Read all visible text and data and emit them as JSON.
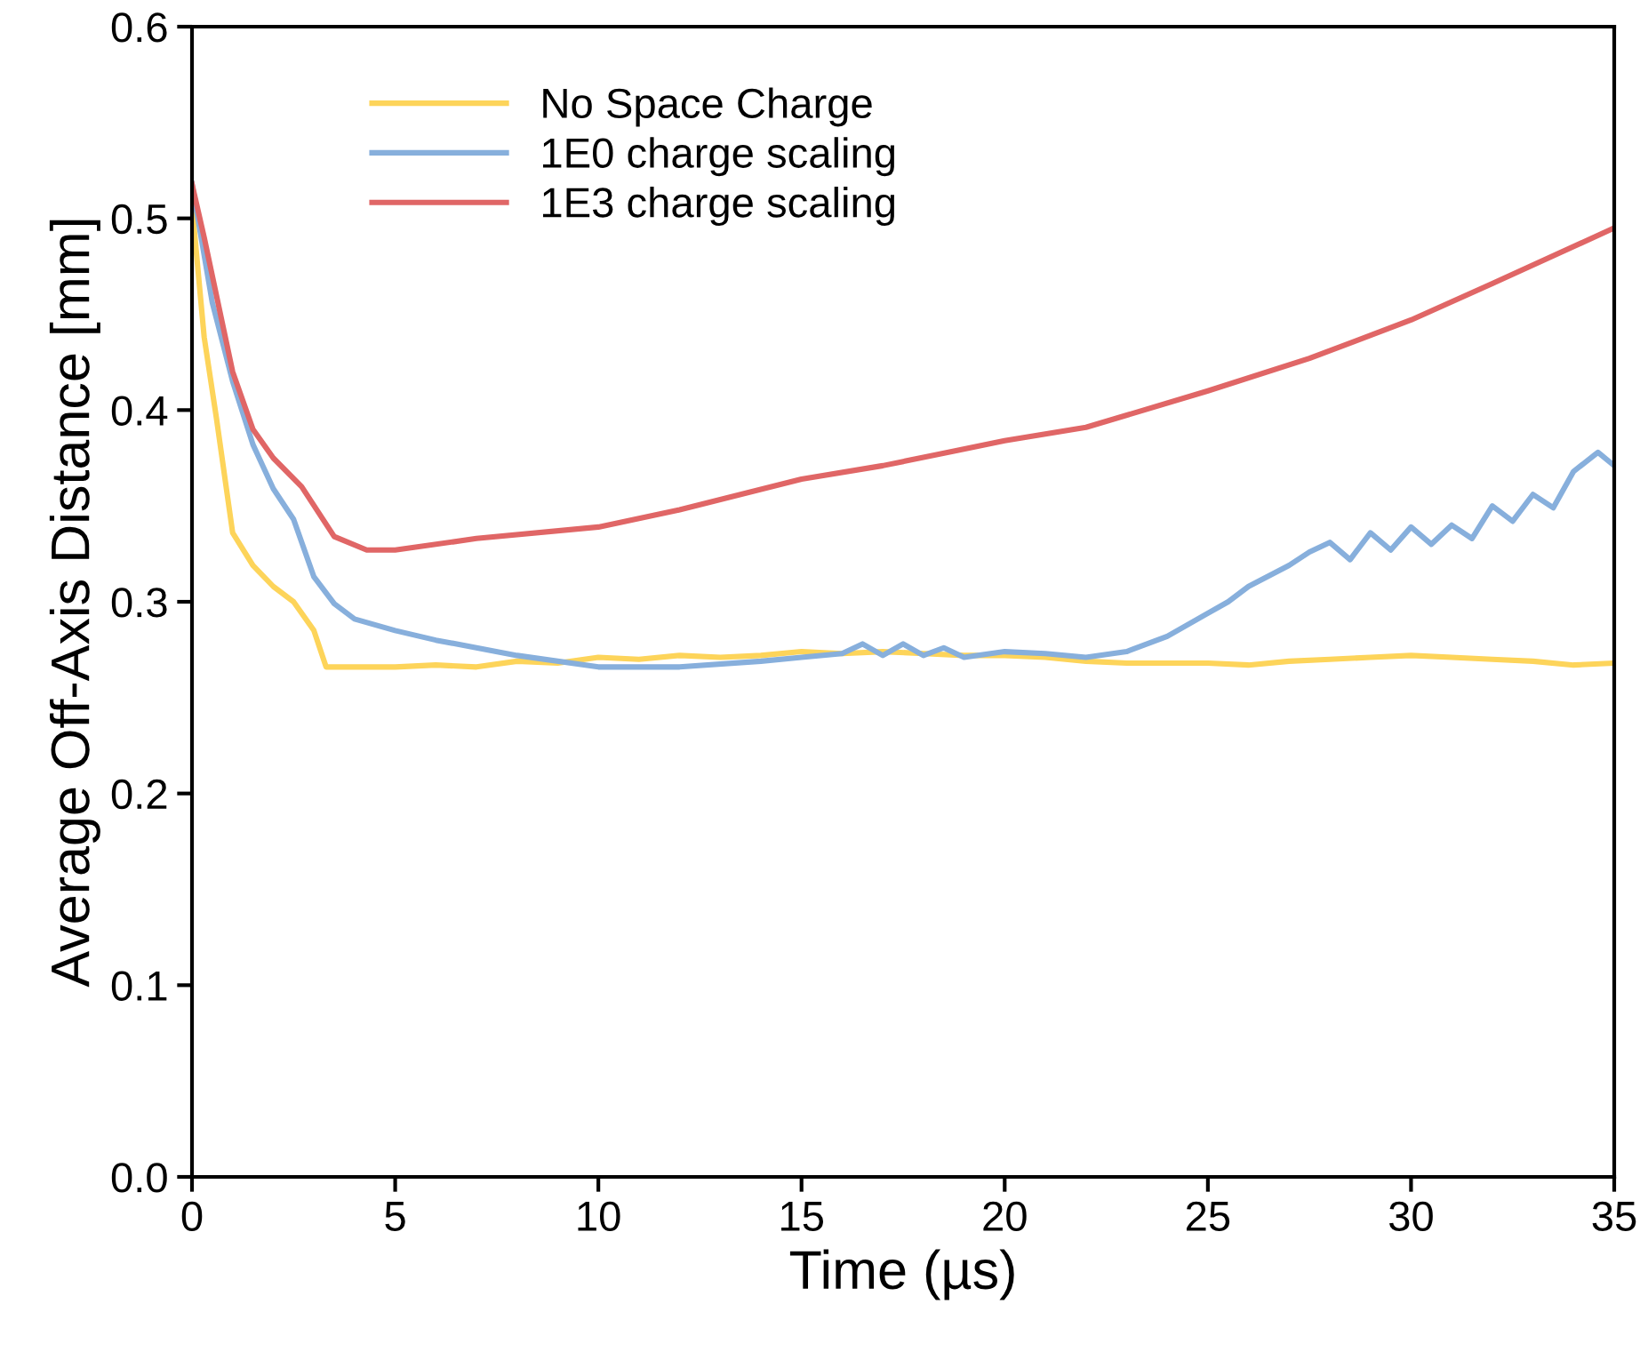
{
  "chart_data": {
    "type": "line",
    "xlabel": "Time (µs)",
    "ylabel": "Average Off-Axis Distance [mm]",
    "xlim": [
      0,
      35
    ],
    "ylim": [
      0,
      0.6
    ],
    "xticks": [
      0,
      5,
      10,
      15,
      20,
      25,
      30,
      35
    ],
    "yticks": [
      {
        "value": 0,
        "label": "0.0"
      },
      0.1,
      0.2,
      0.3,
      0.4,
      0.5,
      0.6
    ],
    "grid": false,
    "legend": "top left",
    "marker": "none",
    "line_style": "solid",
    "series": [
      {
        "name": "No Space Charge",
        "color": "#fdd45a",
        "x": [
          0,
          0.3,
          0.6,
          1,
          1.5,
          2,
          2.5,
          3,
          3.3,
          4,
          5,
          6,
          7,
          8,
          9,
          10,
          11,
          12,
          13,
          14,
          15,
          16,
          17,
          18,
          19,
          20,
          21,
          22,
          23,
          24,
          25,
          26,
          27,
          28,
          29,
          30,
          31,
          32,
          33,
          34,
          35
        ],
        "values": [
          0.507,
          0.438,
          0.396,
          0.336,
          0.319,
          0.308,
          0.3,
          0.285,
          0.266,
          0.266,
          0.266,
          0.267,
          0.266,
          0.269,
          0.268,
          0.271,
          0.27,
          0.272,
          0.271,
          0.272,
          0.274,
          0.273,
          0.274,
          0.273,
          0.272,
          0.272,
          0.271,
          0.269,
          0.268,
          0.268,
          0.268,
          0.267,
          0.269,
          0.27,
          0.271,
          0.272,
          0.271,
          0.27,
          0.269,
          0.267,
          0.268
        ]
      },
      {
        "name": "1E0 charge scaling",
        "color": "#87afdc",
        "x": [
          0,
          0.5,
          1,
          1.5,
          2,
          2.5,
          3,
          3.5,
          4,
          5,
          6,
          7,
          8,
          10,
          12,
          14,
          15,
          16,
          16.5,
          17,
          17.5,
          18,
          18.5,
          19,
          20,
          21,
          22,
          23,
          24,
          25,
          25.5,
          26,
          27,
          27.5,
          28,
          28.5,
          29,
          29.5,
          30,
          30.5,
          31,
          31.5,
          32,
          32.5,
          33,
          33.5,
          34,
          34.6,
          35
        ],
        "values": [
          0.518,
          0.456,
          0.415,
          0.382,
          0.359,
          0.343,
          0.313,
          0.299,
          0.291,
          0.285,
          0.28,
          0.276,
          0.272,
          0.266,
          0.266,
          0.269,
          0.271,
          0.273,
          0.278,
          0.272,
          0.278,
          0.272,
          0.276,
          0.271,
          0.274,
          0.273,
          0.271,
          0.274,
          0.282,
          0.294,
          0.3,
          0.308,
          0.319,
          0.326,
          0.331,
          0.322,
          0.336,
          0.327,
          0.339,
          0.33,
          0.34,
          0.333,
          0.35,
          0.342,
          0.356,
          0.349,
          0.368,
          0.378,
          0.371
        ]
      },
      {
        "name": "1E3 charge scaling",
        "color": "#e06666",
        "x": [
          0,
          0.3,
          1,
          1.5,
          2,
          2.7,
          3.5,
          4.3,
          5,
          7,
          10,
          12,
          15,
          17,
          20,
          22,
          25,
          27.5,
          30,
          32,
          35
        ],
        "values": [
          0.518,
          0.49,
          0.42,
          0.39,
          0.375,
          0.36,
          0.334,
          0.327,
          0.327,
          0.333,
          0.339,
          0.348,
          0.364,
          0.371,
          0.384,
          0.391,
          0.41,
          0.427,
          0.447,
          0.466,
          0.495
        ]
      }
    ]
  }
}
